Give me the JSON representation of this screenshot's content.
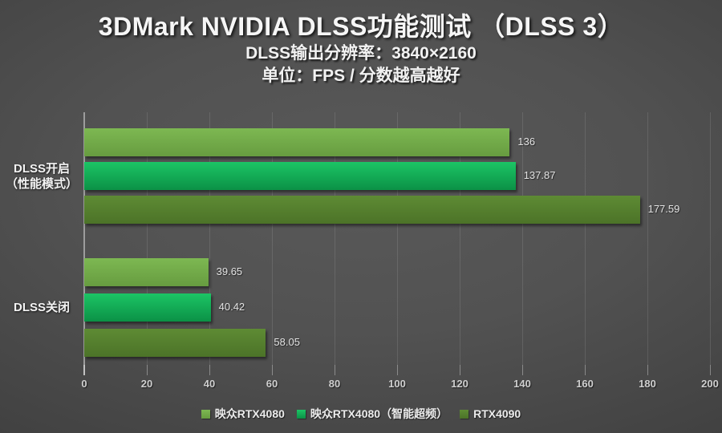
{
  "header": {
    "title": "3DMark NVIDIA DLSS功能测试 （DLSS 3）",
    "subtitle_resolution": "DLSS输出分辨率：3840×2160",
    "subtitle_unit": "单位：FPS / 分数越高越好"
  },
  "chart_data": {
    "type": "bar",
    "orientation": "horizontal",
    "title": "3DMark NVIDIA DLSS功能测试 （DLSS 3）",
    "subtitle": "DLSS输出分辨率：3840×2160",
    "unit_note": "单位：FPS / 分数越高越好",
    "categories": [
      "DLSS开启（性能模式）",
      "DLSS关闭"
    ],
    "category_label_lines": [
      [
        "DLSS开启",
        "（性能模式）"
      ],
      [
        "DLSS关闭"
      ]
    ],
    "series": [
      {
        "name": "映众RTX4080",
        "values": [
          136,
          39.65
        ],
        "value_labels": [
          "136",
          "39.65"
        ],
        "color_top": "#7db852",
        "color_bottom": "#679c40"
      },
      {
        "name": "映众RTX4080（智能超频）",
        "values": [
          137.87,
          40.42
        ],
        "value_labels": [
          "137.87",
          "40.42"
        ],
        "color_top": "#1cc565",
        "color_bottom": "#0b9146"
      },
      {
        "name": "RTX4090",
        "values": [
          177.59,
          58.05
        ],
        "value_labels": [
          "177.59",
          "58.05"
        ],
        "color_top": "#5e8b34",
        "color_bottom": "#4c7328"
      }
    ],
    "xlim": [
      0,
      200
    ],
    "x_ticks": [
      0,
      20,
      40,
      60,
      80,
      100,
      120,
      140,
      160,
      180,
      200
    ],
    "grid": true,
    "legend_position": "bottom",
    "value_labels_visible": true
  },
  "colors": {
    "background_center": "#595959",
    "background_edge": "#222222",
    "gridline": "rgba(255,255,255,0.11)",
    "axis_line": "#9d9d9d",
    "tick_label": "#cfcfcf",
    "text": "#f2f2f2"
  }
}
